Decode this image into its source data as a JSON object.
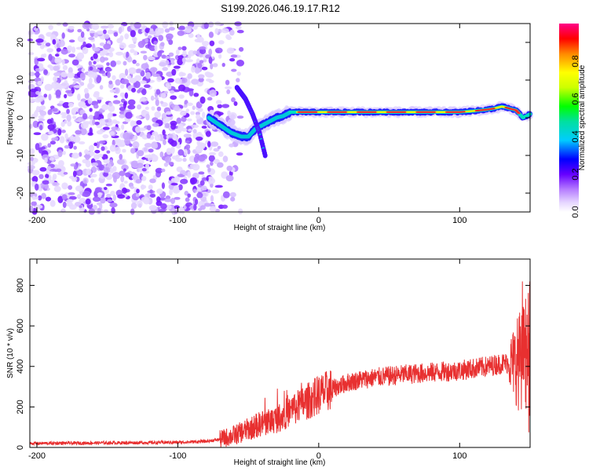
{
  "title": "S199.2026.046.19.17.R12",
  "chart_data": [
    {
      "type": "heatmap",
      "name": "spectrogram",
      "xlabel": "Height of straight line (km)",
      "ylabel": "Frequency (Hz)",
      "xlim": [
        -205,
        150
      ],
      "ylim": [
        -25,
        25
      ],
      "xticks": [
        -200,
        -100,
        0,
        100
      ],
      "yticks": [
        -20,
        -10,
        0,
        10,
        20
      ],
      "colorbar": {
        "label": "Normalized spectral amplitude",
        "range": [
          0,
          1
        ],
        "ticks": [
          0.0,
          0.2,
          0.4,
          0.6,
          0.8
        ]
      },
      "noise_region_x": [
        -205,
        -75
      ],
      "signal_track": {
        "x": [
          -78,
          -70,
          -62,
          -55,
          -50,
          -45,
          -40,
          -35,
          -30,
          -25,
          -20,
          -10,
          0,
          10,
          20,
          40,
          60,
          80,
          100,
          110,
          120,
          125,
          130,
          140,
          145,
          150
        ],
        "frequency": [
          0,
          -2,
          -4,
          -5,
          -5,
          -3,
          -2,
          -1,
          0,
          0.5,
          1.5,
          1.5,
          1.5,
          1.5,
          1.5,
          1.5,
          1.5,
          1.5,
          1.5,
          1.8,
          2.2,
          2.5,
          3,
          2,
          0,
          1
        ]
      },
      "branch_track": {
        "x": [
          -58,
          -52,
          -47,
          -42,
          -38
        ],
        "frequency": [
          8,
          5,
          1,
          -4,
          -10
        ]
      }
    },
    {
      "type": "line",
      "name": "snr",
      "xlabel": "Height of straight line (km)",
      "ylabel": "SNR (10 * v/v)",
      "xlim": [
        -205,
        150
      ],
      "ylim": [
        0,
        930
      ],
      "xticks": [
        -200,
        -100,
        0,
        100
      ],
      "yticks": [
        0,
        200,
        400,
        600,
        800
      ],
      "color": "#e83030",
      "trend": {
        "x": [
          -205,
          -100,
          -80,
          -70,
          -60,
          -50,
          -40,
          -30,
          -20,
          -10,
          0,
          10,
          20,
          30,
          40,
          60,
          80,
          100,
          120,
          130,
          140,
          145,
          150
        ],
        "y": [
          20,
          25,
          30,
          40,
          60,
          90,
          120,
          140,
          180,
          220,
          260,
          290,
          320,
          335,
          345,
          360,
          370,
          380,
          400,
          415,
          420,
          430,
          440
        ]
      }
    }
  ]
}
